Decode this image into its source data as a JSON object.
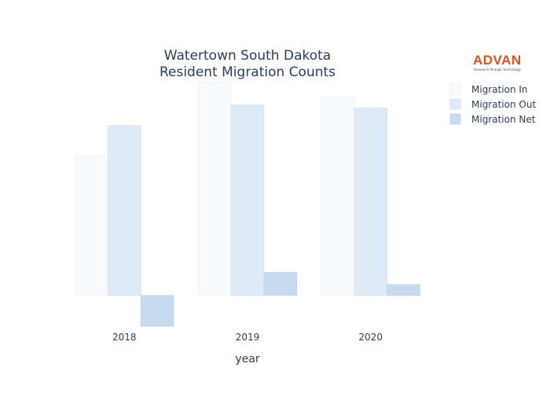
{
  "logo": {
    "name": "ADVAN",
    "tagline": "Research through Technology",
    "color": "#d9541e"
  },
  "chart_data": {
    "type": "bar",
    "title_lines": [
      "Watertown South Dakota",
      "Resident Migration Counts"
    ],
    "xlabel": "year",
    "ylabel": "",
    "categories": [
      "2018",
      "2019",
      "2020"
    ],
    "series": [
      {
        "name": "Migration In",
        "values": [
          1605,
          2460,
          2285
        ],
        "color": "#f7fbff",
        "stroke": "#e8f0f8"
      },
      {
        "name": "Migration Out",
        "values": [
          1960,
          2195,
          2160
        ],
        "color": "#deebf7",
        "stroke": "#d3e2f1"
      },
      {
        "name": "Migration Net",
        "values": [
          -355,
          265,
          125
        ],
        "color": "#c6dbef",
        "stroke": "#bdd3ea"
      }
    ],
    "ylim": [
      -400,
      2500
    ],
    "y_ticks_shown": false,
    "grid": false,
    "legend_position": "top-right"
  }
}
